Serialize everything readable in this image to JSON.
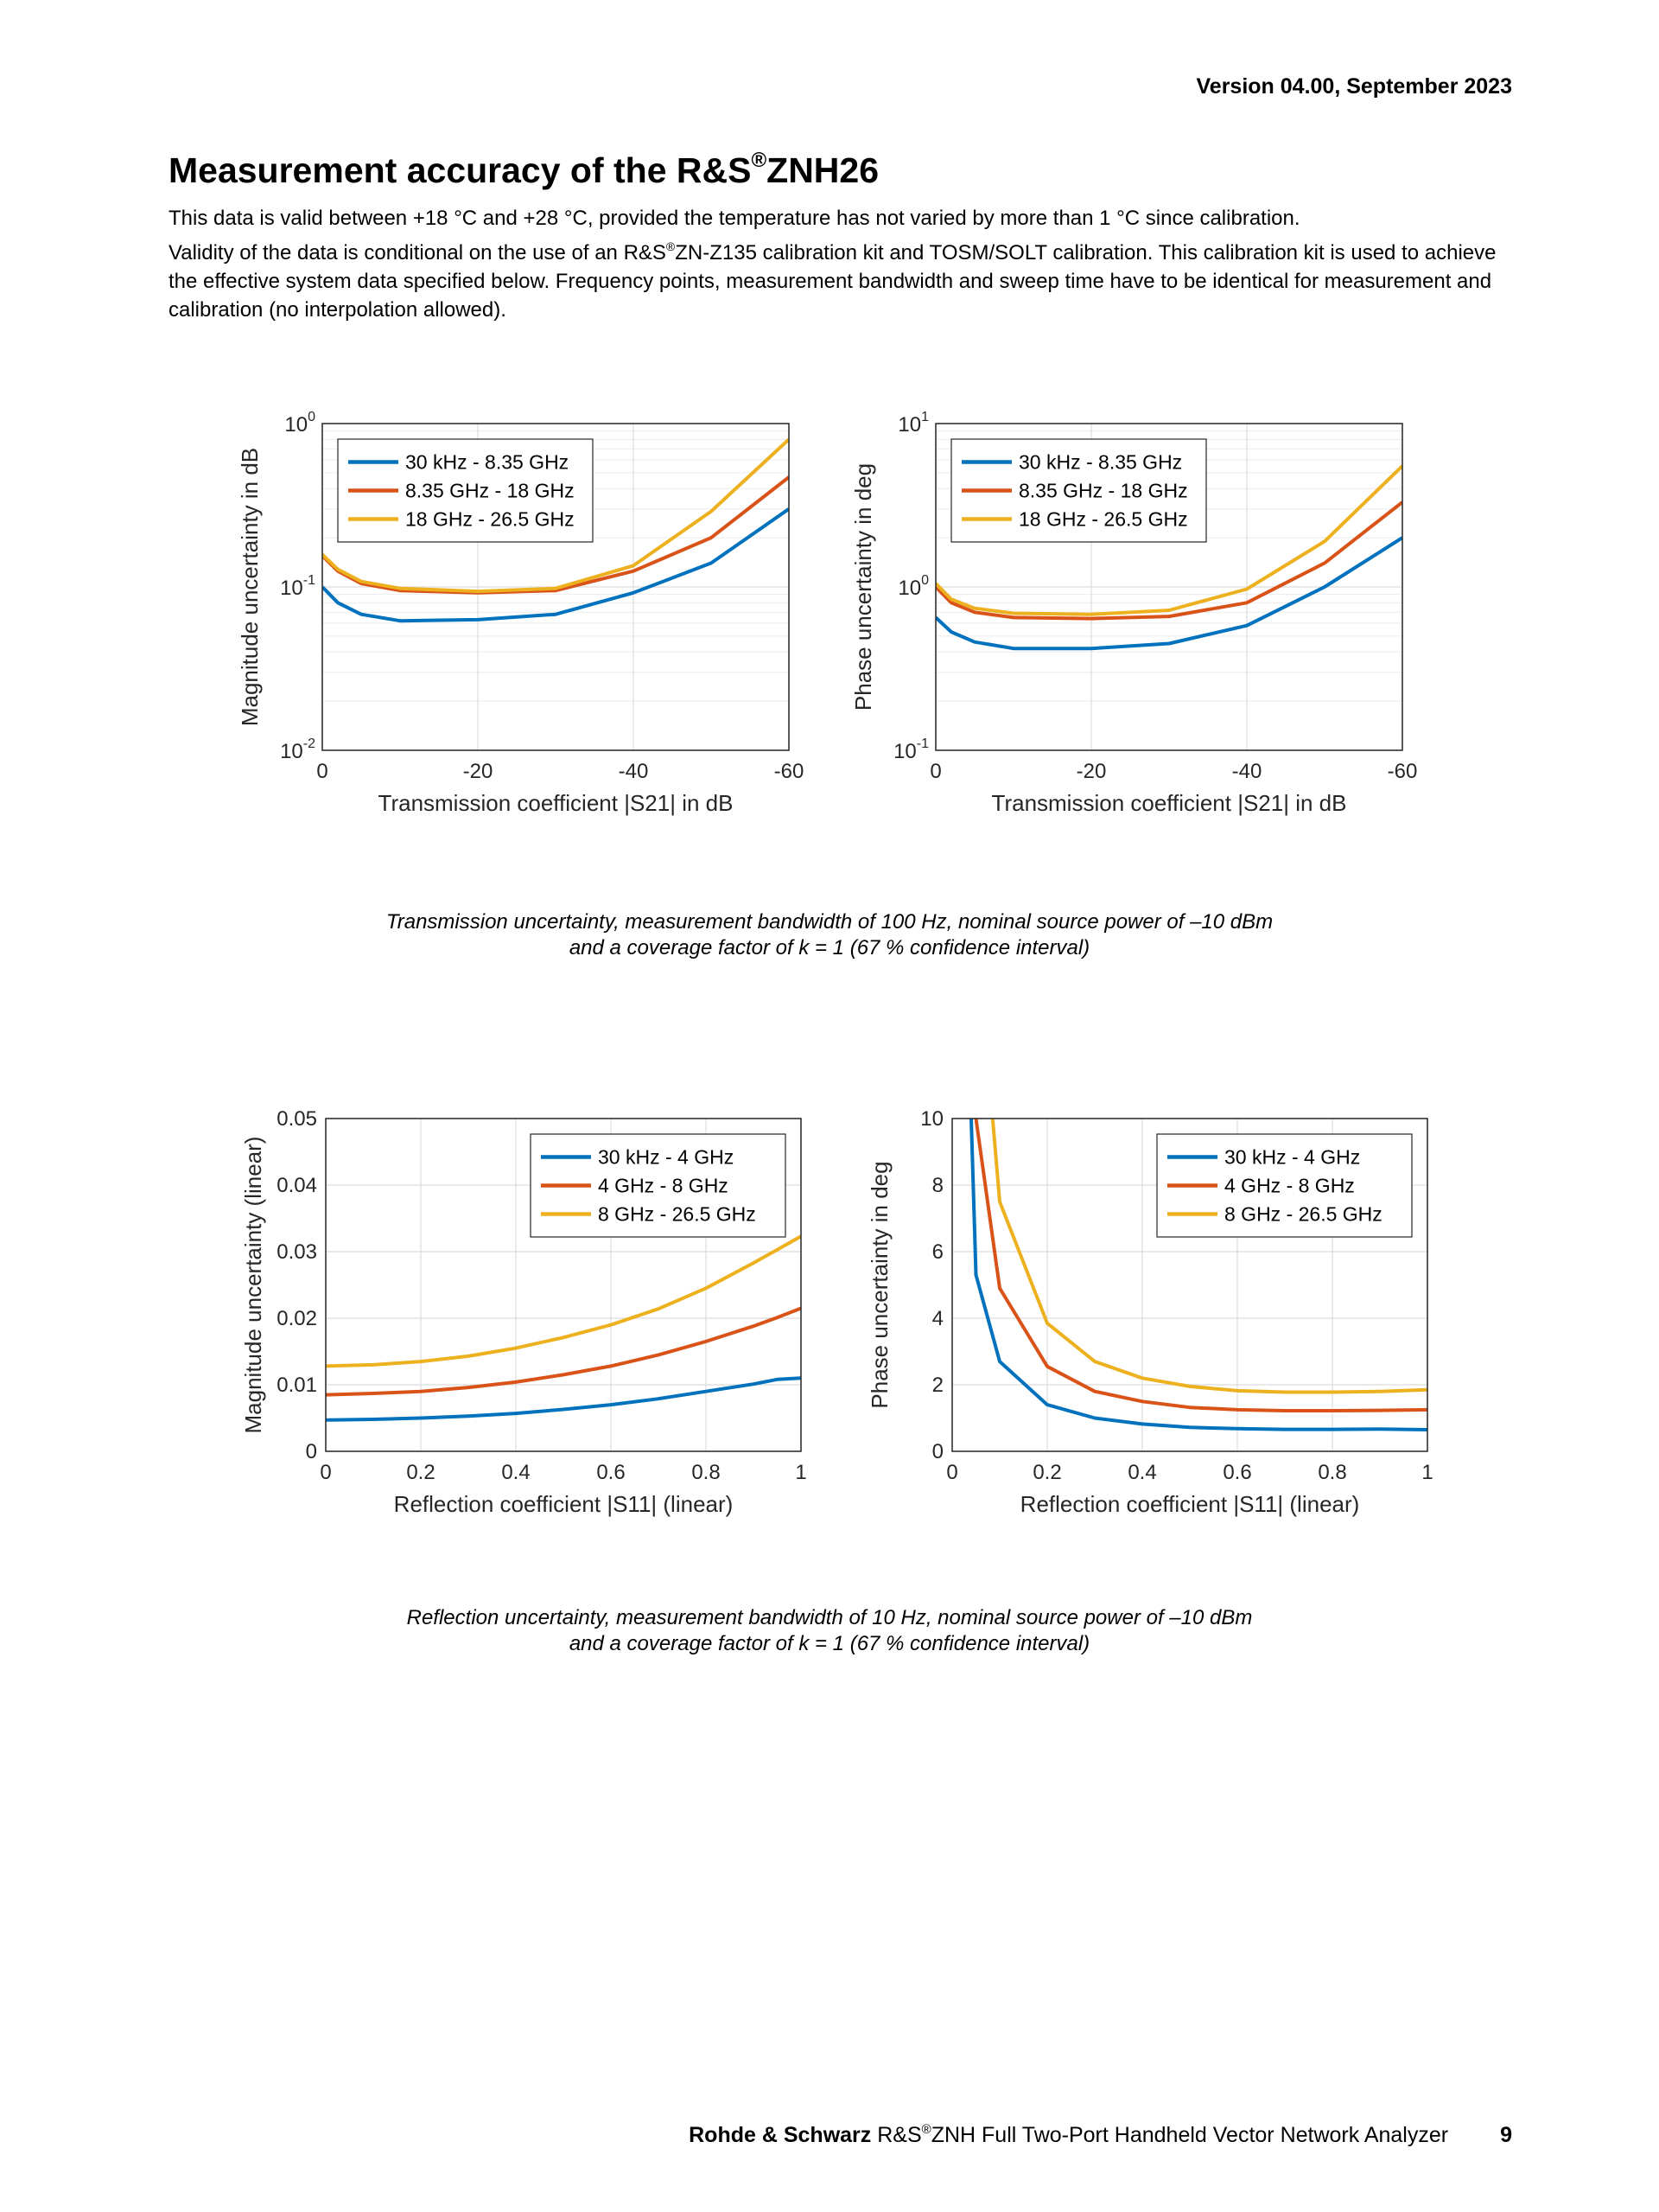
{
  "header": {
    "version": "Version 04.00, September 2023"
  },
  "title": {
    "main": "Measurement accuracy of the R&S",
    "reg": "®",
    "model": "ZNH26"
  },
  "intro": {
    "line1": "This data is valid between +18 °C and +28 °C, provided the temperature has not varied by more than 1 °C since calibration.",
    "line2a": "Validity of the data is conditional on the use of an R&S",
    "reg": "®",
    "line2b": "ZN-Z135 calibration kit and TOSM/SOLT calibration. This calibration kit is used to achieve the effective system data specified below. Frequency points, measurement bandwidth and sweep time have to be identical for measurement and calibration (no interpolation allowed)."
  },
  "captions": {
    "transmission_line1": "Transmission uncertainty, measurement bandwidth of 100 Hz, nominal source power of –10 dBm",
    "transmission_line2": "and a coverage factor of k = 1 (67 % confidence interval)",
    "reflection_line1": "Reflection uncertainty, measurement bandwidth of 10 Hz, nominal source power of –10 dBm",
    "reflection_line2": "and a coverage factor of k = 1 (67 % confidence interval)"
  },
  "footer": {
    "brand": "Rohde & Schwarz",
    "text_a": " R&S",
    "reg": "®",
    "text_b": "ZNH Full Two-Port Handheld Vector Network Analyzer",
    "page": "9"
  },
  "colors": {
    "blue": "#0072bd",
    "orange": "#d95319",
    "yellow": "#edb120"
  },
  "chart_data": [
    {
      "id": "tx-mag",
      "type": "line",
      "yscale": "log",
      "xlabel": "Transmission coefficient |S21| in dB",
      "ylabel": "Magnitude uncertainty in dB",
      "xlim": [
        0,
        -60
      ],
      "ylim": [
        0.01,
        1
      ],
      "xticks": [
        0,
        -20,
        -40,
        -60
      ],
      "xtick_labels": [
        "0",
        "-20",
        "-40",
        "-60"
      ],
      "yticks": [
        0.01,
        0.1,
        1
      ],
      "ytick_labels": [
        [
          "10",
          "-2"
        ],
        [
          "10",
          "-1"
        ],
        [
          "10",
          "0"
        ]
      ],
      "legend_position": "top-left",
      "x": [
        0,
        -2,
        -5,
        -10,
        -20,
        -30,
        -40,
        -50,
        -60
      ],
      "series": [
        {
          "name": "30 kHz - 8.35 GHz",
          "color": "#0072bd",
          "values": [
            0.1,
            0.08,
            0.068,
            0.062,
            0.063,
            0.068,
            0.092,
            0.14,
            0.3
          ]
        },
        {
          "name": "8.35 GHz - 18 GHz",
          "color": "#d95319",
          "values": [
            0.155,
            0.125,
            0.105,
            0.095,
            0.092,
            0.095,
            0.125,
            0.2,
            0.47
          ]
        },
        {
          "name": "18 GHz - 26.5 GHz",
          "color": "#edb120",
          "values": [
            0.158,
            0.128,
            0.108,
            0.098,
            0.094,
            0.098,
            0.135,
            0.29,
            0.8
          ]
        }
      ]
    },
    {
      "id": "tx-phase",
      "type": "line",
      "yscale": "log",
      "xlabel": "Transmission coefficient |S21| in dB",
      "ylabel": "Phase uncertainty in deg",
      "xlim": [
        0,
        -60
      ],
      "ylim": [
        0.1,
        10
      ],
      "xticks": [
        0,
        -20,
        -40,
        -60
      ],
      "xtick_labels": [
        "0",
        "-20",
        "-40",
        "-60"
      ],
      "yticks": [
        0.1,
        1,
        10
      ],
      "ytick_labels": [
        [
          "10",
          "-1"
        ],
        [
          "10",
          "0"
        ],
        [
          "10",
          "1"
        ]
      ],
      "legend_position": "top-left",
      "x": [
        0,
        -2,
        -5,
        -10,
        -20,
        -30,
        -40,
        -50,
        -60
      ],
      "series": [
        {
          "name": "30 kHz - 8.35 GHz",
          "color": "#0072bd",
          "values": [
            0.65,
            0.53,
            0.46,
            0.42,
            0.42,
            0.45,
            0.58,
            1.0,
            2.0
          ]
        },
        {
          "name": "8.35 GHz - 18 GHz",
          "color": "#d95319",
          "values": [
            1.0,
            0.8,
            0.7,
            0.65,
            0.64,
            0.66,
            0.8,
            1.4,
            3.3
          ]
        },
        {
          "name": "18 GHz - 26.5 GHz",
          "color": "#edb120",
          "values": [
            1.05,
            0.84,
            0.74,
            0.69,
            0.68,
            0.72,
            0.97,
            1.9,
            5.5
          ]
        }
      ]
    },
    {
      "id": "rf-mag",
      "type": "line",
      "yscale": "linear",
      "xlabel": "Reflection coefficient |S11| (linear)",
      "ylabel": "Magnitude uncertainty (linear)",
      "xlim": [
        0,
        1
      ],
      "ylim": [
        0,
        0.05
      ],
      "xticks": [
        0,
        0.2,
        0.4,
        0.6,
        0.8,
        1
      ],
      "xtick_labels": [
        "0",
        "0.2",
        "0.4",
        "0.6",
        "0.8",
        "1"
      ],
      "yticks": [
        0,
        0.01,
        0.02,
        0.03,
        0.04,
        0.05
      ],
      "ytick_labels": [
        "0",
        "0.01",
        "0.02",
        "0.03",
        "0.04",
        "0.05"
      ],
      "legend_position": "top-right",
      "x": [
        0,
        0.1,
        0.2,
        0.3,
        0.4,
        0.5,
        0.6,
        0.7,
        0.8,
        0.9,
        0.95,
        1.0
      ],
      "series": [
        {
          "name": "30 kHz - 4 GHz",
          "color": "#0072bd",
          "values": [
            0.0047,
            0.0048,
            0.005,
            0.0053,
            0.0057,
            0.0063,
            0.007,
            0.0079,
            0.009,
            0.0101,
            0.0108,
            0.011
          ]
        },
        {
          "name": "4 GHz - 8 GHz",
          "color": "#d95319",
          "values": [
            0.0085,
            0.0087,
            0.009,
            0.0096,
            0.0104,
            0.0115,
            0.0128,
            0.0145,
            0.0165,
            0.0188,
            0.0201,
            0.0215
          ]
        },
        {
          "name": "8 GHz - 26.5 GHz",
          "color": "#edb120",
          "values": [
            0.0128,
            0.013,
            0.0135,
            0.0143,
            0.0155,
            0.0171,
            0.019,
            0.0214,
            0.0245,
            0.0283,
            0.0303,
            0.0323
          ]
        }
      ]
    },
    {
      "id": "rf-phase",
      "type": "line",
      "yscale": "linear",
      "xlabel": "Reflection coefficient |S11| (linear)",
      "ylabel": "Phase uncertainty in deg",
      "xlim": [
        0,
        1
      ],
      "ylim": [
        0,
        10
      ],
      "xticks": [
        0,
        0.2,
        0.4,
        0.6,
        0.8,
        1
      ],
      "xtick_labels": [
        "0",
        "0.2",
        "0.4",
        "0.6",
        "0.8",
        "1"
      ],
      "yticks": [
        0,
        2,
        4,
        6,
        8,
        10
      ],
      "ytick_labels": [
        "0",
        "2",
        "4",
        "6",
        "8",
        "10"
      ],
      "legend_position": "top-right",
      "series": [
        {
          "name": "30 kHz - 4 GHz",
          "color": "#0072bd",
          "x": [
            0.04,
            0.05,
            0.1,
            0.2,
            0.3,
            0.4,
            0.5,
            0.6,
            0.7,
            0.8,
            0.9,
            1.0
          ],
          "values": [
            10,
            5.3,
            2.7,
            1.4,
            1.0,
            0.82,
            0.72,
            0.68,
            0.66,
            0.66,
            0.67,
            0.65
          ]
        },
        {
          "name": "4 GHz - 8 GHz",
          "color": "#d95319",
          "x": [
            0.05,
            0.1,
            0.2,
            0.3,
            0.4,
            0.5,
            0.6,
            0.7,
            0.8,
            0.9,
            1.0
          ],
          "values": [
            10,
            4.9,
            2.55,
            1.8,
            1.5,
            1.32,
            1.25,
            1.22,
            1.22,
            1.23,
            1.25
          ]
        },
        {
          "name": "8 GHz - 26.5 GHz",
          "color": "#edb120",
          "x": [
            0.085,
            0.1,
            0.2,
            0.3,
            0.4,
            0.5,
            0.6,
            0.7,
            0.8,
            0.9,
            1.0
          ],
          "values": [
            10,
            7.5,
            3.85,
            2.7,
            2.2,
            1.95,
            1.82,
            1.78,
            1.78,
            1.8,
            1.85
          ]
        }
      ]
    }
  ]
}
